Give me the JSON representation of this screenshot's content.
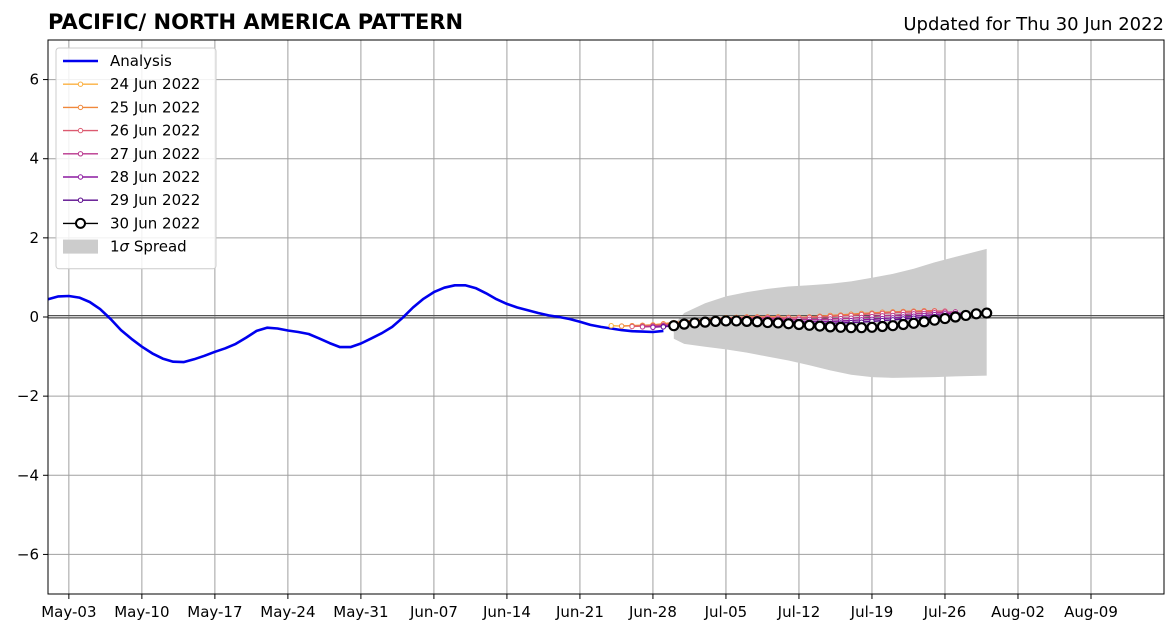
{
  "chart_data": {
    "type": "line",
    "title": "PACIFIC/ NORTH AMERICA PATTERN",
    "subtitle": "Updated for Thu 30 Jun 2022",
    "xlabel": "",
    "ylabel": "",
    "x_axis": {
      "kind": "date",
      "range": [
        "2022-05-01",
        "2022-08-16"
      ],
      "ticks": [
        "May-03",
        "May-10",
        "May-17",
        "May-24",
        "May-31",
        "Jun-07",
        "Jun-14",
        "Jun-21",
        "Jun-28",
        "Jul-05",
        "Jul-12",
        "Jul-19",
        "Jul-26",
        "Aug-02",
        "Aug-09"
      ]
    },
    "ylim": [
      -7,
      7
    ],
    "yticks": [
      -6,
      -4,
      -2,
      0,
      2,
      4,
      6
    ],
    "ytick_labels": [
      "−6",
      "−4",
      "−2",
      "0",
      "2",
      "4",
      "6"
    ],
    "grid": true,
    "zero_line": true,
    "legend_position": "top-left",
    "colors": {
      "analysis": "#0000ee",
      "fc_0624": "#fbb040",
      "fc_0625": "#f0883c",
      "fc_0626": "#dc5a70",
      "fc_0627": "#b8348c",
      "fc_0628": "#8c1aa0",
      "fc_0629": "#5a0a8c",
      "fc_0630": "#000000",
      "spread": "#cccccc"
    },
    "series": [
      {
        "name": "Analysis",
        "kind": "analysis",
        "color_key": "analysis",
        "x": [
          "2022-05-01",
          "2022-05-02",
          "2022-05-03",
          "2022-05-04",
          "2022-05-05",
          "2022-05-06",
          "2022-05-07",
          "2022-05-08",
          "2022-05-09",
          "2022-05-10",
          "2022-05-11",
          "2022-05-12",
          "2022-05-13",
          "2022-05-14",
          "2022-05-15",
          "2022-05-16",
          "2022-05-17",
          "2022-05-18",
          "2022-05-19",
          "2022-05-20",
          "2022-05-21",
          "2022-05-22",
          "2022-05-23",
          "2022-05-24",
          "2022-05-25",
          "2022-05-26",
          "2022-05-27",
          "2022-05-28",
          "2022-05-29",
          "2022-05-30",
          "2022-05-31",
          "2022-06-01",
          "2022-06-02",
          "2022-06-03",
          "2022-06-04",
          "2022-06-05",
          "2022-06-06",
          "2022-06-07",
          "2022-06-08",
          "2022-06-09",
          "2022-06-10",
          "2022-06-11",
          "2022-06-12",
          "2022-06-13",
          "2022-06-14",
          "2022-06-15",
          "2022-06-16",
          "2022-06-17",
          "2022-06-18",
          "2022-06-19",
          "2022-06-20",
          "2022-06-21",
          "2022-06-22",
          "2022-06-23",
          "2022-06-24",
          "2022-06-25",
          "2022-06-26",
          "2022-06-27",
          "2022-06-28",
          "2022-06-29"
        ],
        "y": [
          0.45,
          0.52,
          0.53,
          0.49,
          0.38,
          0.2,
          -0.05,
          -0.33,
          -0.55,
          -0.75,
          -0.92,
          -1.05,
          -1.13,
          -1.14,
          -1.07,
          -0.98,
          -0.88,
          -0.79,
          -0.68,
          -0.52,
          -0.35,
          -0.27,
          -0.29,
          -0.34,
          -0.38,
          -0.43,
          -0.54,
          -0.66,
          -0.76,
          -0.76,
          -0.67,
          -0.54,
          -0.41,
          -0.25,
          -0.02,
          0.24,
          0.46,
          0.63,
          0.74,
          0.8,
          0.8,
          0.73,
          0.6,
          0.45,
          0.33,
          0.24,
          0.17,
          0.1,
          0.04,
          0.0,
          -0.05,
          -0.12,
          -0.2,
          -0.25,
          -0.29,
          -0.33,
          -0.36,
          -0.37,
          -0.38,
          -0.35
        ]
      },
      {
        "name": "24 Jun 2022",
        "kind": "forecast",
        "color_key": "fc_0624",
        "marker_size": 2.2,
        "x": [
          "2022-06-24",
          "2022-06-25",
          "2022-06-26",
          "2022-06-27",
          "2022-06-28",
          "2022-06-29",
          "2022-06-30",
          "2022-07-01",
          "2022-07-02",
          "2022-07-03",
          "2022-07-04",
          "2022-07-05",
          "2022-07-06",
          "2022-07-07",
          "2022-07-08",
          "2022-07-09",
          "2022-07-10",
          "2022-07-11",
          "2022-07-12",
          "2022-07-13",
          "2022-07-14",
          "2022-07-15",
          "2022-07-16",
          "2022-07-17",
          "2022-07-18",
          "2022-07-19",
          "2022-07-20",
          "2022-07-21",
          "2022-07-22",
          "2022-07-23",
          "2022-07-24"
        ],
        "y": [
          -0.22,
          -0.23,
          -0.22,
          -0.21,
          -0.2,
          -0.18,
          -0.15,
          -0.12,
          -0.09,
          -0.06,
          -0.04,
          -0.02,
          -0.01,
          0.0,
          0.0,
          0.0,
          0.0,
          -0.01,
          -0.01,
          0.0,
          0.01,
          0.03,
          0.05,
          0.06,
          0.08,
          0.1,
          0.11,
          0.12,
          0.13,
          0.14,
          0.14
        ]
      },
      {
        "name": "25 Jun 2022",
        "kind": "forecast",
        "color_key": "fc_0625",
        "marker_size": 2.2,
        "x": [
          "2022-06-25",
          "2022-06-26",
          "2022-06-27",
          "2022-06-28",
          "2022-06-29",
          "2022-06-30",
          "2022-07-01",
          "2022-07-02",
          "2022-07-03",
          "2022-07-04",
          "2022-07-05",
          "2022-07-06",
          "2022-07-07",
          "2022-07-08",
          "2022-07-09",
          "2022-07-10",
          "2022-07-11",
          "2022-07-12",
          "2022-07-13",
          "2022-07-14",
          "2022-07-15",
          "2022-07-16",
          "2022-07-17",
          "2022-07-18",
          "2022-07-19",
          "2022-07-20",
          "2022-07-21",
          "2022-07-22",
          "2022-07-23",
          "2022-07-24",
          "2022-07-25"
        ],
        "y": [
          -0.23,
          -0.22,
          -0.21,
          -0.2,
          -0.17,
          -0.14,
          -0.11,
          -0.08,
          -0.06,
          -0.04,
          -0.02,
          -0.01,
          0.0,
          0.0,
          0.0,
          0.0,
          -0.01,
          -0.01,
          0.0,
          0.02,
          0.04,
          0.05,
          0.07,
          0.09,
          0.1,
          0.12,
          0.13,
          0.14,
          0.15,
          0.16,
          0.16
        ]
      },
      {
        "name": "26 Jun 2022",
        "kind": "forecast",
        "color_key": "fc_0626",
        "marker_size": 2.2,
        "x": [
          "2022-06-26",
          "2022-06-27",
          "2022-06-28",
          "2022-06-29",
          "2022-06-30",
          "2022-07-01",
          "2022-07-02",
          "2022-07-03",
          "2022-07-04",
          "2022-07-05",
          "2022-07-06",
          "2022-07-07",
          "2022-07-08",
          "2022-07-09",
          "2022-07-10",
          "2022-07-11",
          "2022-07-12",
          "2022-07-13",
          "2022-07-14",
          "2022-07-15",
          "2022-07-16",
          "2022-07-17",
          "2022-07-18",
          "2022-07-19",
          "2022-07-20",
          "2022-07-21",
          "2022-07-22",
          "2022-07-23",
          "2022-07-24",
          "2022-07-25",
          "2022-07-26"
        ],
        "y": [
          -0.24,
          -0.23,
          -0.22,
          -0.2,
          -0.17,
          -0.13,
          -0.1,
          -0.07,
          -0.05,
          -0.03,
          -0.02,
          -0.01,
          -0.01,
          -0.01,
          -0.02,
          -0.02,
          -0.02,
          -0.01,
          0.0,
          0.01,
          0.03,
          0.04,
          0.06,
          0.08,
          0.09,
          0.11,
          0.12,
          0.13,
          0.14,
          0.15,
          0.15
        ]
      },
      {
        "name": "27 Jun 2022",
        "kind": "forecast",
        "color_key": "fc_0627",
        "marker_size": 2.2,
        "x": [
          "2022-06-27",
          "2022-06-28",
          "2022-06-29",
          "2022-06-30",
          "2022-07-01",
          "2022-07-02",
          "2022-07-03",
          "2022-07-04",
          "2022-07-05",
          "2022-07-06",
          "2022-07-07",
          "2022-07-08",
          "2022-07-09",
          "2022-07-10",
          "2022-07-11",
          "2022-07-12",
          "2022-07-13",
          "2022-07-14",
          "2022-07-15",
          "2022-07-16",
          "2022-07-17",
          "2022-07-18",
          "2022-07-19",
          "2022-07-20",
          "2022-07-21",
          "2022-07-22",
          "2022-07-23",
          "2022-07-24",
          "2022-07-25",
          "2022-07-26",
          "2022-07-27"
        ],
        "y": [
          -0.25,
          -0.24,
          -0.22,
          -0.19,
          -0.15,
          -0.12,
          -0.09,
          -0.07,
          -0.05,
          -0.04,
          -0.04,
          -0.04,
          -0.04,
          -0.05,
          -0.06,
          -0.06,
          -0.06,
          -0.06,
          -0.05,
          -0.04,
          -0.03,
          -0.01,
          0.01,
          0.03,
          0.04,
          0.06,
          0.08,
          0.09,
          0.11,
          0.12,
          0.13
        ]
      },
      {
        "name": "28 Jun 2022",
        "kind": "forecast",
        "color_key": "fc_0628",
        "marker_size": 2.2,
        "x": [
          "2022-06-28",
          "2022-06-29",
          "2022-06-30",
          "2022-07-01",
          "2022-07-02",
          "2022-07-03",
          "2022-07-04",
          "2022-07-05",
          "2022-07-06",
          "2022-07-07",
          "2022-07-08",
          "2022-07-09",
          "2022-07-10",
          "2022-07-11",
          "2022-07-12",
          "2022-07-13",
          "2022-07-14",
          "2022-07-15",
          "2022-07-16",
          "2022-07-17",
          "2022-07-18",
          "2022-07-19",
          "2022-07-20",
          "2022-07-21",
          "2022-07-22",
          "2022-07-23",
          "2022-07-24",
          "2022-07-25",
          "2022-07-26",
          "2022-07-27",
          "2022-07-28"
        ],
        "y": [
          -0.26,
          -0.24,
          -0.21,
          -0.17,
          -0.14,
          -0.11,
          -0.09,
          -0.08,
          -0.07,
          -0.07,
          -0.08,
          -0.08,
          -0.09,
          -0.1,
          -0.11,
          -0.11,
          -0.11,
          -0.11,
          -0.1,
          -0.09,
          -0.07,
          -0.06,
          -0.04,
          -0.02,
          0.0,
          0.02,
          0.04,
          0.06,
          0.08,
          0.09,
          0.1
        ]
      },
      {
        "name": "29 Jun 2022",
        "kind": "forecast",
        "color_key": "fc_0629",
        "marker_size": 2.2,
        "x": [
          "2022-06-29",
          "2022-06-30",
          "2022-07-01",
          "2022-07-02",
          "2022-07-03",
          "2022-07-04",
          "2022-07-05",
          "2022-07-06",
          "2022-07-07",
          "2022-07-08",
          "2022-07-09",
          "2022-07-10",
          "2022-07-11",
          "2022-07-12",
          "2022-07-13",
          "2022-07-14",
          "2022-07-15",
          "2022-07-16",
          "2022-07-17",
          "2022-07-18",
          "2022-07-19",
          "2022-07-20",
          "2022-07-21",
          "2022-07-22",
          "2022-07-23",
          "2022-07-24",
          "2022-07-25",
          "2022-07-26",
          "2022-07-27",
          "2022-07-28",
          "2022-07-29"
        ],
        "y": [
          -0.25,
          -0.22,
          -0.19,
          -0.16,
          -0.13,
          -0.11,
          -0.1,
          -0.1,
          -0.1,
          -0.11,
          -0.12,
          -0.13,
          -0.14,
          -0.15,
          -0.16,
          -0.16,
          -0.16,
          -0.15,
          -0.14,
          -0.13,
          -0.11,
          -0.09,
          -0.07,
          -0.05,
          -0.03,
          -0.01,
          0.01,
          0.03,
          0.05,
          0.07,
          0.08
        ]
      },
      {
        "name": "30 Jun 2022",
        "kind": "main",
        "color_key": "fc_0630",
        "marker_size": 4.5,
        "x": [
          "2022-06-30",
          "2022-07-01",
          "2022-07-02",
          "2022-07-03",
          "2022-07-04",
          "2022-07-05",
          "2022-07-06",
          "2022-07-07",
          "2022-07-08",
          "2022-07-09",
          "2022-07-10",
          "2022-07-11",
          "2022-07-12",
          "2022-07-13",
          "2022-07-14",
          "2022-07-15",
          "2022-07-16",
          "2022-07-17",
          "2022-07-18",
          "2022-07-19",
          "2022-07-20",
          "2022-07-21",
          "2022-07-22",
          "2022-07-23",
          "2022-07-24",
          "2022-07-25",
          "2022-07-26",
          "2022-07-27",
          "2022-07-28",
          "2022-07-29",
          "2022-07-30"
        ],
        "y": [
          -0.22,
          -0.18,
          -0.15,
          -0.13,
          -0.11,
          -0.1,
          -0.1,
          -0.11,
          -0.12,
          -0.14,
          -0.15,
          -0.17,
          -0.19,
          -0.21,
          -0.23,
          -0.25,
          -0.26,
          -0.27,
          -0.27,
          -0.26,
          -0.24,
          -0.22,
          -0.19,
          -0.16,
          -0.12,
          -0.08,
          -0.04,
          0.0,
          0.04,
          0.08,
          0.1
        ]
      }
    ],
    "spread": {
      "name": "1σ Spread",
      "label_prefix": "1",
      "label_symbol": "σ",
      "label_suffix": " Spread",
      "color_key": "spread",
      "x": [
        "2022-06-30",
        "2022-07-01",
        "2022-07-03",
        "2022-07-05",
        "2022-07-07",
        "2022-07-09",
        "2022-07-11",
        "2022-07-13",
        "2022-07-15",
        "2022-07-17",
        "2022-07-19",
        "2022-07-21",
        "2022-07-23",
        "2022-07-25",
        "2022-07-27",
        "2022-07-30"
      ],
      "upper": [
        -0.2,
        0.1,
        0.35,
        0.52,
        0.63,
        0.71,
        0.77,
        0.8,
        0.84,
        0.9,
        0.99,
        1.09,
        1.22,
        1.38,
        1.52,
        1.72
      ],
      "lower": [
        -0.55,
        -0.68,
        -0.75,
        -0.82,
        -0.9,
        -1.0,
        -1.1,
        -1.22,
        -1.35,
        -1.46,
        -1.52,
        -1.54,
        -1.53,
        -1.52,
        -1.5,
        -1.48
      ]
    }
  }
}
